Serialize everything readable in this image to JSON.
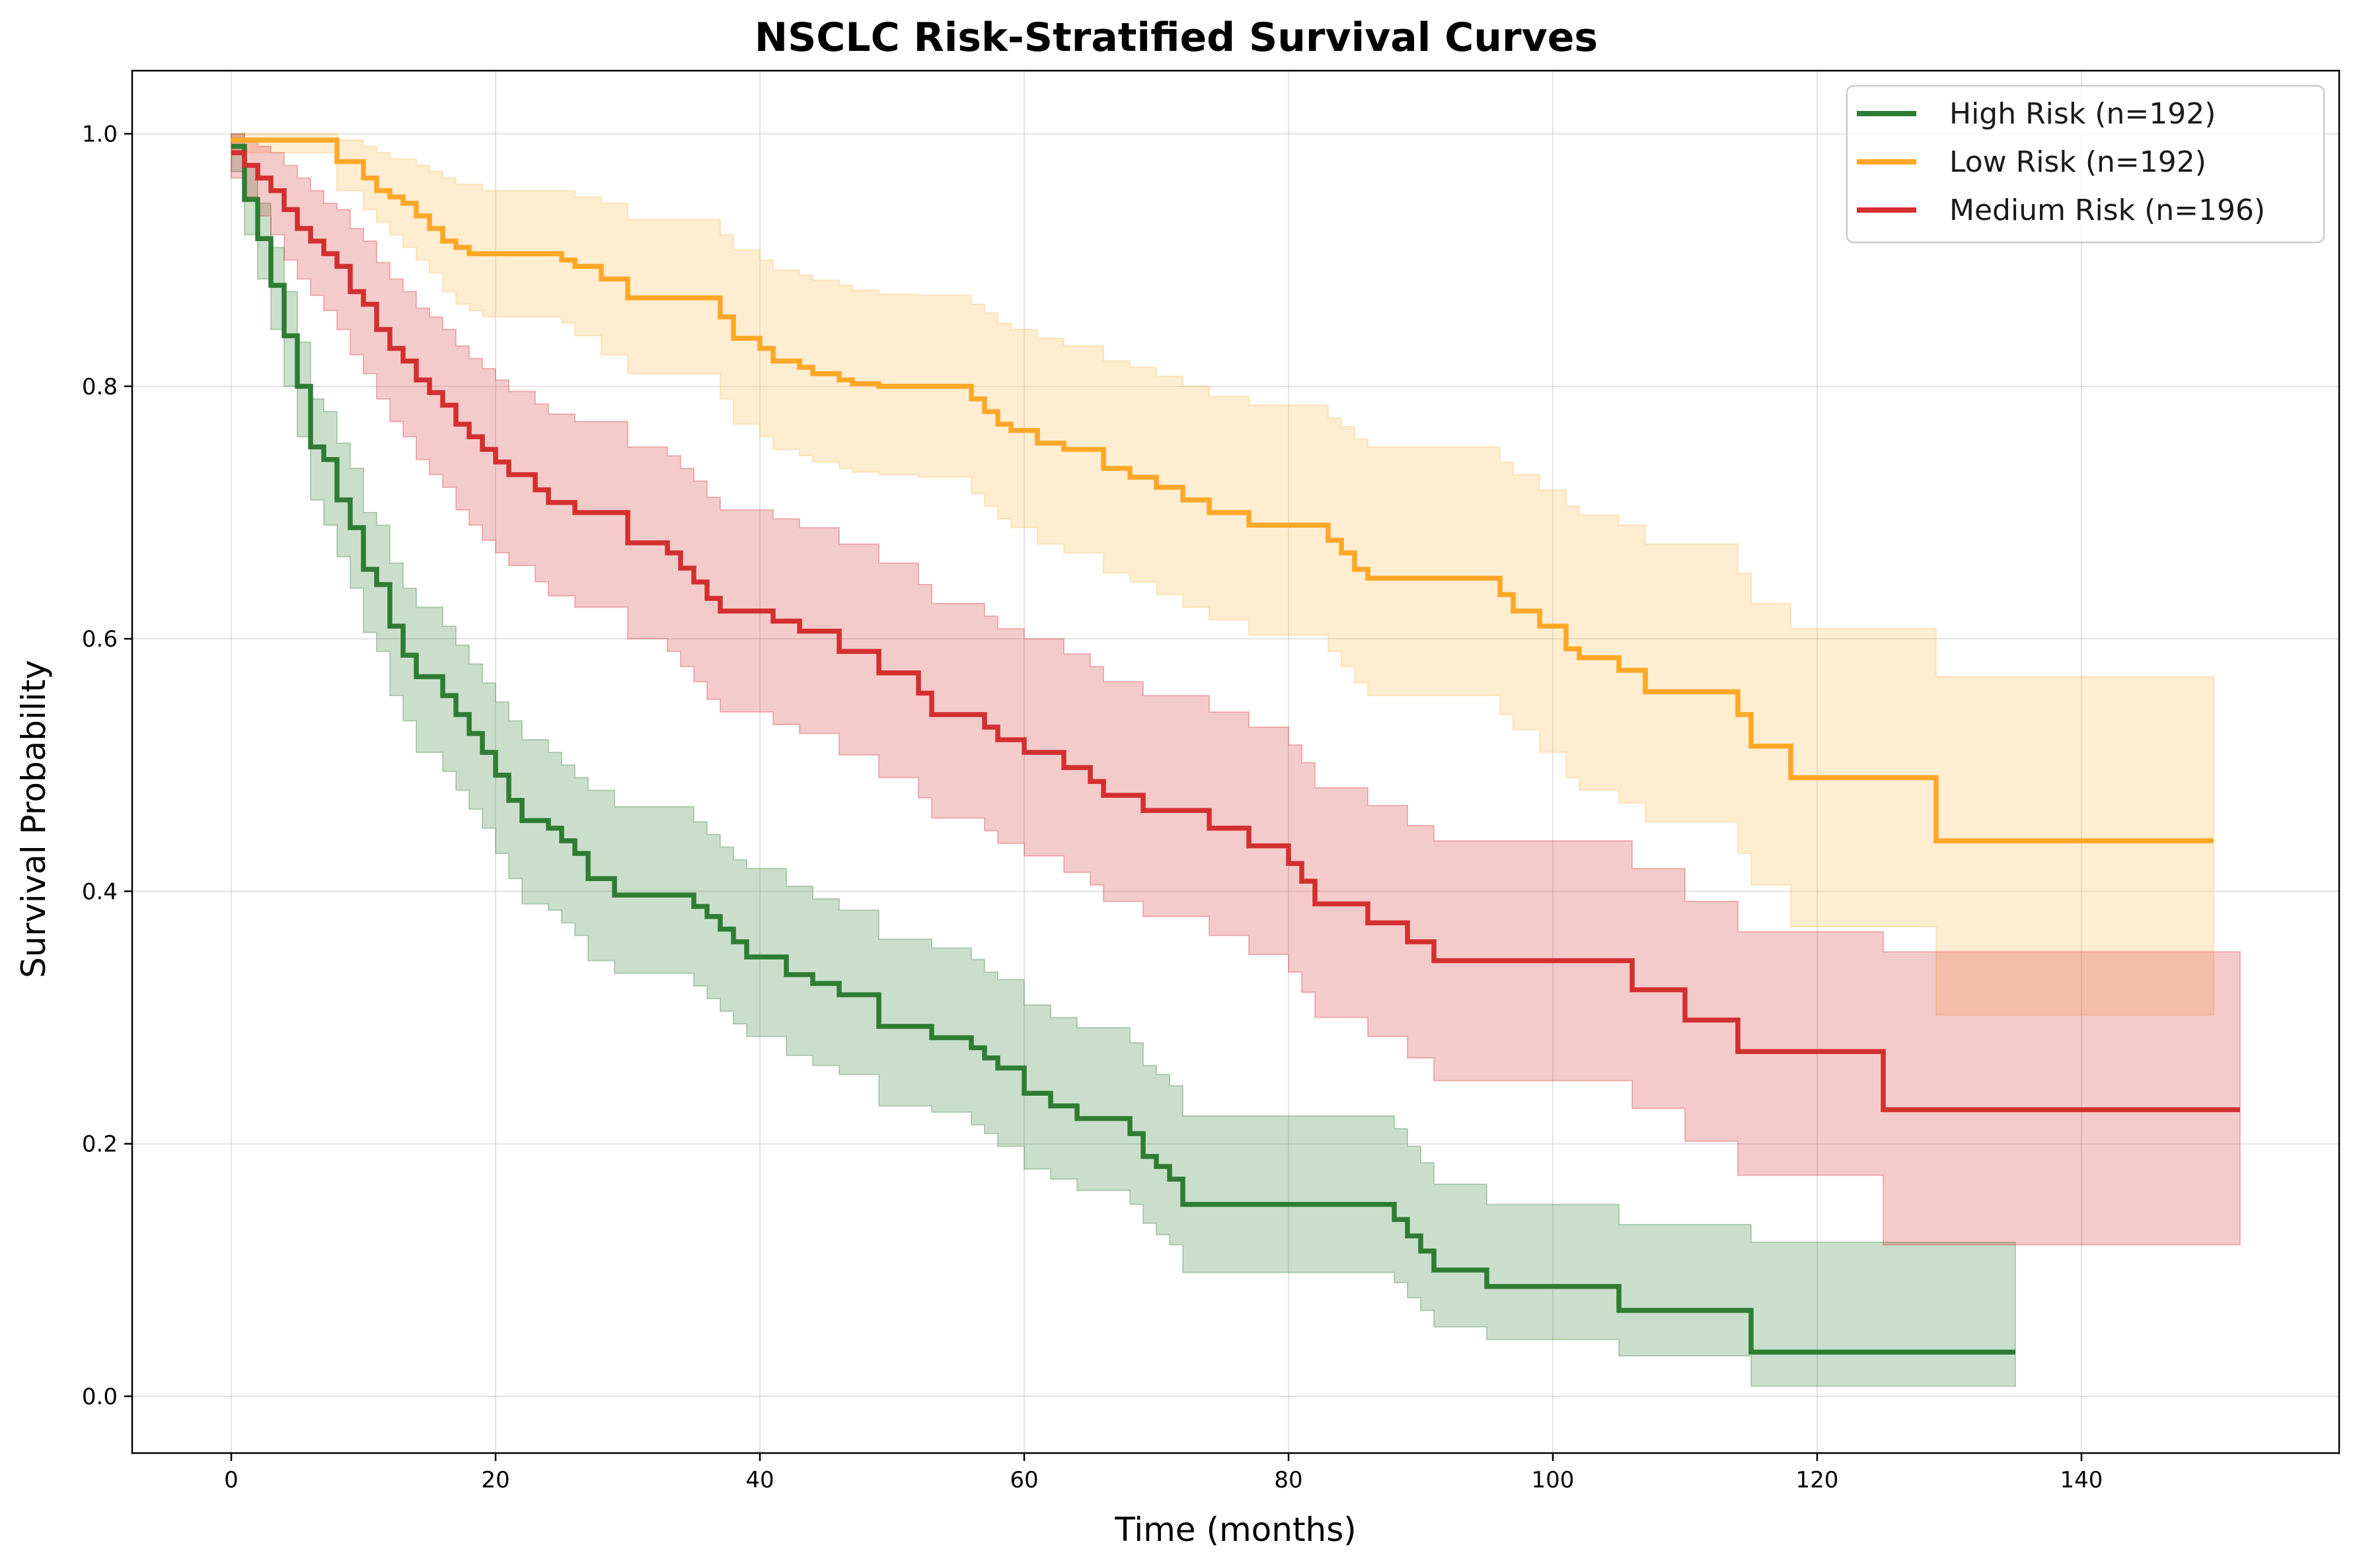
{
  "chart_data": {
    "type": "line",
    "subtype": "kaplan-meier step survival curves with confidence bands",
    "title": "NSCLC Risk-Stratified Survival Curves",
    "xlabel": "Time (months)",
    "ylabel": "Survival Probability",
    "xlim": [
      -7.5,
      159.5
    ],
    "ylim": [
      -0.045,
      1.05
    ],
    "xticks": [
      0,
      20,
      40,
      60,
      80,
      100,
      120,
      140
    ],
    "yticks": [
      0.0,
      0.2,
      0.4,
      0.6,
      0.8,
      1.0
    ],
    "xtick_labels": [
      "0",
      "20",
      "40",
      "60",
      "80",
      "100",
      "120",
      "140"
    ],
    "ytick_labels": [
      "0.0",
      "0.2",
      "0.4",
      "0.6",
      "0.8",
      "1.0"
    ],
    "grid": true,
    "legend_position": "top-right",
    "series": [
      {
        "name": "High Risk (n=192)",
        "color": "#2e7d32",
        "band_color": "#2e7d32",
        "x": [
          0,
          1,
          2,
          3,
          4,
          5,
          6,
          7,
          8,
          9,
          10,
          11,
          12,
          13,
          14,
          16,
          17,
          18,
          19,
          20,
          21,
          22,
          24,
          25,
          26,
          27,
          29,
          35,
          36,
          37,
          38,
          39,
          42,
          44,
          46,
          49,
          53,
          56,
          57,
          58,
          60,
          62,
          64,
          68,
          69,
          70,
          71,
          72,
          88,
          89,
          90,
          91,
          92,
          95,
          105,
          115,
          135
        ],
        "y": [
          0.99,
          0.948,
          0.917,
          0.88,
          0.84,
          0.8,
          0.752,
          0.742,
          0.71,
          0.688,
          0.655,
          0.643,
          0.61,
          0.587,
          0.57,
          0.555,
          0.54,
          0.525,
          0.51,
          0.492,
          0.472,
          0.456,
          0.45,
          0.44,
          0.43,
          0.41,
          0.397,
          0.388,
          0.38,
          0.37,
          0.36,
          0.348,
          0.334,
          0.327,
          0.318,
          0.293,
          0.284,
          0.276,
          0.268,
          0.26,
          0.24,
          0.23,
          0.22,
          0.208,
          0.19,
          0.182,
          0.172,
          0.152,
          0.14,
          0.127,
          0.115,
          0.1,
          0.1,
          0.087,
          0.068,
          0.035,
          0.035
        ],
        "lower": [
          0.97,
          0.92,
          0.885,
          0.845,
          0.8,
          0.76,
          0.71,
          0.69,
          0.665,
          0.64,
          0.605,
          0.59,
          0.555,
          0.535,
          0.51,
          0.495,
          0.48,
          0.465,
          0.45,
          0.43,
          0.41,
          0.39,
          0.385,
          0.375,
          0.365,
          0.345,
          0.335,
          0.325,
          0.315,
          0.305,
          0.295,
          0.285,
          0.27,
          0.262,
          0.255,
          0.23,
          0.225,
          0.215,
          0.208,
          0.198,
          0.18,
          0.172,
          0.163,
          0.152,
          0.137,
          0.128,
          0.12,
          0.098,
          0.09,
          0.078,
          0.068,
          0.055,
          0.055,
          0.045,
          0.032,
          0.008,
          0.008
        ],
        "upper": [
          1.0,
          0.975,
          0.945,
          0.91,
          0.875,
          0.835,
          0.79,
          0.78,
          0.755,
          0.735,
          0.7,
          0.69,
          0.66,
          0.64,
          0.625,
          0.61,
          0.595,
          0.58,
          0.565,
          0.55,
          0.535,
          0.52,
          0.51,
          0.5,
          0.49,
          0.48,
          0.467,
          0.455,
          0.445,
          0.435,
          0.425,
          0.418,
          0.404,
          0.394,
          0.385,
          0.362,
          0.355,
          0.346,
          0.336,
          0.33,
          0.31,
          0.3,
          0.292,
          0.28,
          0.262,
          0.255,
          0.246,
          0.222,
          0.212,
          0.198,
          0.185,
          0.168,
          0.168,
          0.152,
          0.136,
          0.122,
          0.122
        ]
      },
      {
        "name": "Low Risk (n=192)",
        "color": "#ffa726",
        "band_color": "#ffb74d",
        "x": [
          0,
          8,
          10,
          11,
          12,
          13,
          14,
          15,
          16,
          17,
          18,
          19,
          25,
          26,
          28,
          30,
          37,
          38,
          40,
          41,
          43,
          44,
          46,
          47,
          49,
          52,
          56,
          57,
          58,
          59,
          61,
          63,
          66,
          68,
          70,
          72,
          74,
          77,
          83,
          84,
          85,
          86,
          96,
          97,
          99,
          101,
          102,
          105,
          107,
          114,
          115,
          118,
          129,
          150
        ],
        "y": [
          0.995,
          0.978,
          0.965,
          0.955,
          0.95,
          0.945,
          0.935,
          0.925,
          0.915,
          0.91,
          0.905,
          0.905,
          0.9,
          0.895,
          0.885,
          0.87,
          0.855,
          0.838,
          0.83,
          0.82,
          0.815,
          0.81,
          0.805,
          0.802,
          0.8,
          0.8,
          0.79,
          0.78,
          0.77,
          0.765,
          0.755,
          0.75,
          0.735,
          0.728,
          0.72,
          0.71,
          0.7,
          0.69,
          0.678,
          0.668,
          0.655,
          0.648,
          0.635,
          0.622,
          0.61,
          0.592,
          0.585,
          0.575,
          0.558,
          0.54,
          0.515,
          0.49,
          0.44,
          0.44
        ],
        "lower": [
          0.985,
          0.955,
          0.94,
          0.93,
          0.92,
          0.91,
          0.9,
          0.89,
          0.875,
          0.865,
          0.86,
          0.855,
          0.85,
          0.84,
          0.825,
          0.81,
          0.79,
          0.77,
          0.76,
          0.75,
          0.745,
          0.74,
          0.735,
          0.732,
          0.73,
          0.728,
          0.715,
          0.705,
          0.695,
          0.688,
          0.675,
          0.668,
          0.652,
          0.645,
          0.635,
          0.625,
          0.615,
          0.603,
          0.59,
          0.578,
          0.565,
          0.555,
          0.54,
          0.528,
          0.51,
          0.49,
          0.48,
          0.47,
          0.455,
          0.43,
          0.405,
          0.372,
          0.302,
          0.302
        ],
        "upper": [
          1.0,
          0.995,
          0.99,
          0.985,
          0.98,
          0.98,
          0.975,
          0.97,
          0.965,
          0.96,
          0.96,
          0.955,
          0.955,
          0.95,
          0.945,
          0.932,
          0.92,
          0.908,
          0.9,
          0.892,
          0.888,
          0.884,
          0.88,
          0.876,
          0.873,
          0.872,
          0.865,
          0.858,
          0.85,
          0.845,
          0.838,
          0.832,
          0.82,
          0.815,
          0.808,
          0.8,
          0.792,
          0.785,
          0.775,
          0.768,
          0.758,
          0.752,
          0.74,
          0.73,
          0.718,
          0.705,
          0.698,
          0.69,
          0.675,
          0.652,
          0.628,
          0.608,
          0.57,
          0.57
        ]
      },
      {
        "name": "Medium Risk (n=196)",
        "color": "#d32f2f",
        "band_color": "#d32f2f",
        "x": [
          0,
          1,
          2,
          3,
          4,
          5,
          6,
          7,
          8,
          9,
          10,
          11,
          12,
          13,
          14,
          15,
          16,
          17,
          18,
          19,
          20,
          21,
          23,
          24,
          26,
          30,
          33,
          34,
          35,
          36,
          37,
          38,
          41,
          43,
          46,
          49,
          52,
          53,
          57,
          58,
          60,
          63,
          65,
          66,
          69,
          74,
          77,
          80,
          81,
          82,
          86,
          89,
          91,
          92,
          106,
          110,
          114,
          125,
          152
        ],
        "y": [
          0.985,
          0.975,
          0.965,
          0.955,
          0.94,
          0.925,
          0.915,
          0.905,
          0.895,
          0.875,
          0.865,
          0.845,
          0.83,
          0.82,
          0.805,
          0.795,
          0.785,
          0.77,
          0.76,
          0.75,
          0.74,
          0.73,
          0.718,
          0.708,
          0.7,
          0.676,
          0.668,
          0.656,
          0.645,
          0.632,
          0.622,
          0.622,
          0.614,
          0.606,
          0.59,
          0.573,
          0.557,
          0.54,
          0.53,
          0.52,
          0.51,
          0.498,
          0.487,
          0.476,
          0.464,
          0.45,
          0.436,
          0.422,
          0.408,
          0.39,
          0.375,
          0.36,
          0.345,
          0.345,
          0.322,
          0.298,
          0.273,
          0.227,
          0.227
        ],
        "lower": [
          0.965,
          0.95,
          0.935,
          0.92,
          0.9,
          0.885,
          0.872,
          0.86,
          0.845,
          0.825,
          0.81,
          0.79,
          0.772,
          0.76,
          0.742,
          0.73,
          0.72,
          0.702,
          0.69,
          0.678,
          0.668,
          0.658,
          0.645,
          0.634,
          0.625,
          0.6,
          0.59,
          0.578,
          0.566,
          0.552,
          0.542,
          0.542,
          0.532,
          0.525,
          0.508,
          0.49,
          0.474,
          0.458,
          0.448,
          0.438,
          0.428,
          0.415,
          0.405,
          0.392,
          0.38,
          0.365,
          0.35,
          0.336,
          0.32,
          0.3,
          0.285,
          0.268,
          0.25,
          0.25,
          0.228,
          0.202,
          0.175,
          0.12,
          0.12
        ],
        "upper": [
          1.0,
          0.995,
          0.99,
          0.985,
          0.975,
          0.965,
          0.955,
          0.945,
          0.94,
          0.925,
          0.915,
          0.898,
          0.885,
          0.875,
          0.862,
          0.855,
          0.845,
          0.832,
          0.822,
          0.814,
          0.805,
          0.796,
          0.786,
          0.778,
          0.772,
          0.752,
          0.745,
          0.735,
          0.725,
          0.712,
          0.702,
          0.702,
          0.695,
          0.688,
          0.675,
          0.66,
          0.643,
          0.628,
          0.618,
          0.608,
          0.6,
          0.588,
          0.578,
          0.566,
          0.555,
          0.542,
          0.53,
          0.516,
          0.502,
          0.482,
          0.468,
          0.452,
          0.44,
          0.44,
          0.418,
          0.392,
          0.368,
          0.352,
          0.352
        ]
      }
    ]
  }
}
